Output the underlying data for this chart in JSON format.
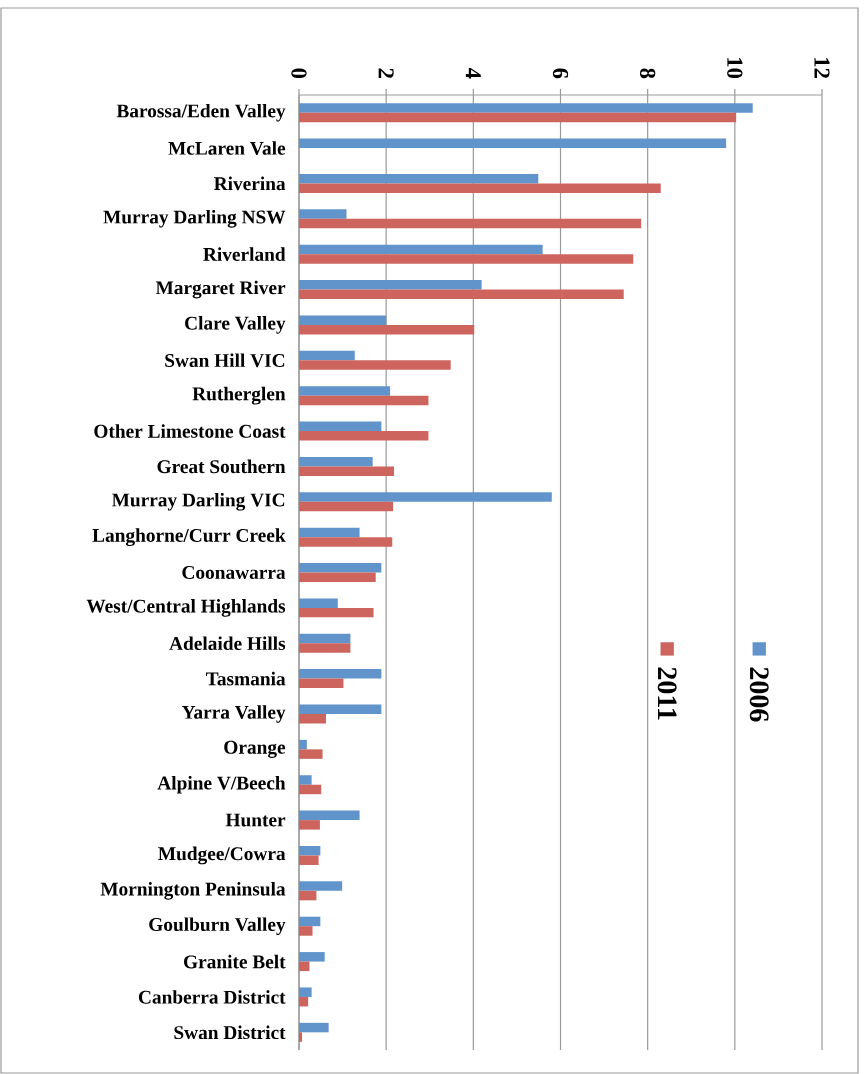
{
  "chart_data": {
    "type": "bar",
    "orientation": "horizontal",
    "categories": [
      "Barossa/Eden Valley",
      "McLaren Vale",
      "Riverina",
      "Murray Darling NSW",
      "Riverland",
      "Margaret River",
      "Clare Valley",
      "Swan Hill VIC",
      "Rutherglen",
      "Other Limestone Coast",
      "Great Southern",
      "Murray Darling VIC",
      "Langhorne/Curr Creek",
      "Coonawarra",
      "West/Central Highlands",
      "Adelaide Hills",
      "Tasmania",
      "Yarra Valley",
      "Orange",
      "Alpine V/Beech",
      "Hunter",
      "Mudgee/Cowra",
      "Mornington Peninsula",
      "Goulburn Valley",
      "Granite Belt",
      "Canberra District",
      "Swan District"
    ],
    "series": [
      {
        "name": "2006",
        "color": "#6094cb",
        "values": [
          10.41,
          9.8,
          5.49,
          1.09,
          5.59,
          4.19,
          2.0,
          1.28,
          2.09,
          1.89,
          1.69,
          5.8,
          1.39,
          1.89,
          0.89,
          1.18,
          1.89,
          1.89,
          0.18,
          0.29,
          1.39,
          0.49,
          0.99,
          0.49,
          0.59,
          0.29,
          0.68
        ]
      },
      {
        "name": "2011",
        "color": "#cd645e",
        "values": [
          10.03,
          null,
          8.3,
          7.85,
          7.67,
          7.45,
          4.02,
          3.48,
          2.97,
          2.97,
          2.18,
          2.16,
          2.14,
          1.76,
          1.71,
          1.18,
          1.02,
          0.62,
          0.54,
          0.51,
          0.48,
          0.45,
          0.4,
          0.31,
          0.24,
          0.21,
          0.07
        ]
      }
    ],
    "xlim": [
      0,
      12
    ],
    "xticks": [
      0,
      2,
      4,
      6,
      8,
      10,
      12
    ],
    "grid": "x",
    "legend": "right"
  }
}
